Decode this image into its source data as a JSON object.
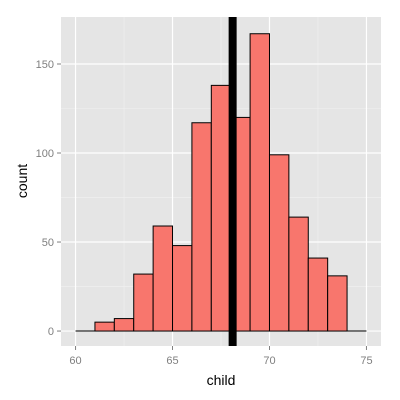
{
  "chart_data": {
    "type": "bar",
    "chart_subtype": "histogram",
    "xlabel": "child",
    "ylabel": "count",
    "xlim": [
      59.25,
      75.75
    ],
    "ylim": [
      -8.4,
      176.4
    ],
    "x_ticks": [
      60,
      65,
      70,
      75
    ],
    "y_ticks": [
      0,
      50,
      100,
      150
    ],
    "bin_width": 1,
    "bins": [
      {
        "x0": 60,
        "x1": 61,
        "count": 0
      },
      {
        "x0": 61,
        "x1": 62,
        "count": 5
      },
      {
        "x0": 62,
        "x1": 63,
        "count": 7
      },
      {
        "x0": 63,
        "x1": 64,
        "count": 32
      },
      {
        "x0": 64,
        "x1": 65,
        "count": 59
      },
      {
        "x0": 65,
        "x1": 66,
        "count": 48
      },
      {
        "x0": 66,
        "x1": 67,
        "count": 117
      },
      {
        "x0": 67,
        "x1": 68,
        "count": 138
      },
      {
        "x0": 68,
        "x1": 69,
        "count": 120
      },
      {
        "x0": 69,
        "x1": 70,
        "count": 167
      },
      {
        "x0": 70,
        "x1": 71,
        "count": 99
      },
      {
        "x0": 71,
        "x1": 72,
        "count": 64
      },
      {
        "x0": 72,
        "x1": 73,
        "count": 41
      },
      {
        "x0": 73,
        "x1": 74,
        "count": 31
      },
      {
        "x0": 74,
        "x1": 75,
        "count": 0
      }
    ],
    "vline": {
      "x": 68.1
    },
    "grid": true,
    "colors": {
      "panel": "#e5e5e5",
      "grid_major": "#ffffff",
      "grid_minor": "#f2f2f2",
      "bar_fill": "#f8766d",
      "bar_outline": "#000000",
      "vline": "#000000"
    }
  }
}
